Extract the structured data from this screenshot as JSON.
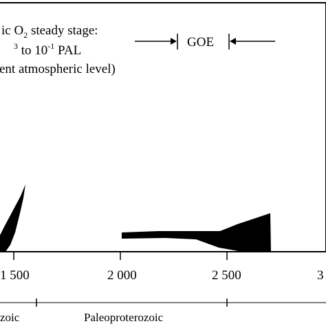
{
  "annotation": {
    "line1_prefix": "ic O",
    "line1_subscript": "2",
    "line1_suffix": " steady stage:",
    "line2_start": "3",
    "line2_mid": " to 10",
    "line2_exp": "-1",
    "line2_end": " PAL",
    "line3": "ent atmospheric level)"
  },
  "goe": {
    "label": "GOE"
  },
  "x_axis": {
    "tick_labels": [
      "1 500",
      "2 000",
      "2 500",
      "3"
    ]
  },
  "eras": {
    "left_partial": "zoic",
    "middle": "Paleoproterozoic"
  },
  "colors": {
    "ink": "#000000",
    "background": "#ffffff"
  }
}
